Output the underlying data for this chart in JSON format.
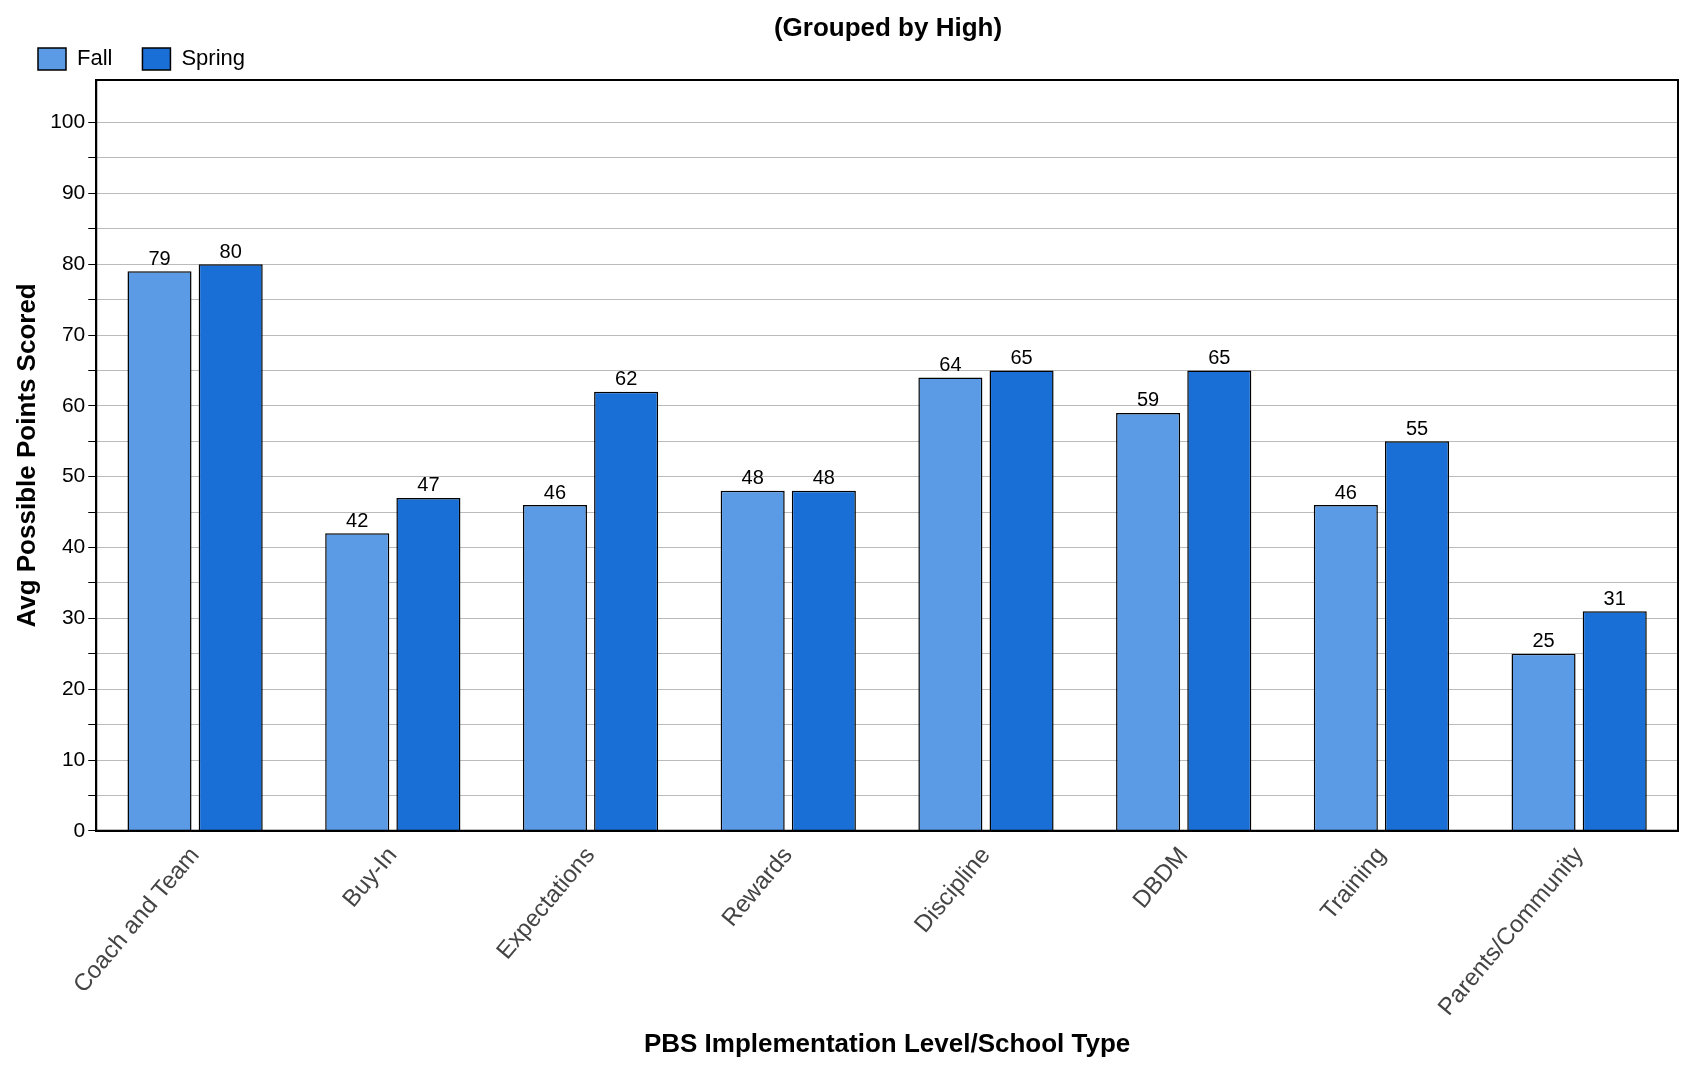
{
  "chart_data": {
    "type": "bar",
    "title": "(Grouped by High)",
    "xlabel": "PBS Implementation Level/School Type",
    "ylabel": "Avg Possible Points Scored",
    "categories": [
      "Coach and Team",
      "Buy-In",
      "Expectations",
      "Rewards",
      "Discipline",
      "DBDM",
      "Training",
      "Parents/Community"
    ],
    "series": [
      {
        "name": "Fall",
        "color": "#5b9be6",
        "values": [
          79,
          42,
          46,
          48,
          64,
          59,
          46,
          25
        ]
      },
      {
        "name": "Spring",
        "color": "#1a6fd6",
        "values": [
          80,
          47,
          62,
          48,
          65,
          65,
          55,
          31
        ]
      }
    ],
    "ylim": [
      0,
      106
    ],
    "yticks": [
      0,
      {
        "value": 5,
        "label": null
      },
      10,
      {
        "value": 15,
        "label": null
      },
      20,
      {
        "value": 25,
        "label": null
      },
      30,
      {
        "value": 35,
        "label": null
      },
      40,
      {
        "value": 45,
        "label": null
      },
      50,
      {
        "value": 55,
        "label": null
      },
      60,
      {
        "value": 65,
        "label": null
      },
      70,
      {
        "value": 75,
        "label": null
      },
      80,
      {
        "value": 85,
        "label": null
      },
      90,
      {
        "value": 95,
        "label": null
      },
      100
    ],
    "grid": "y",
    "legend": "top left",
    "data_labels": true
  }
}
